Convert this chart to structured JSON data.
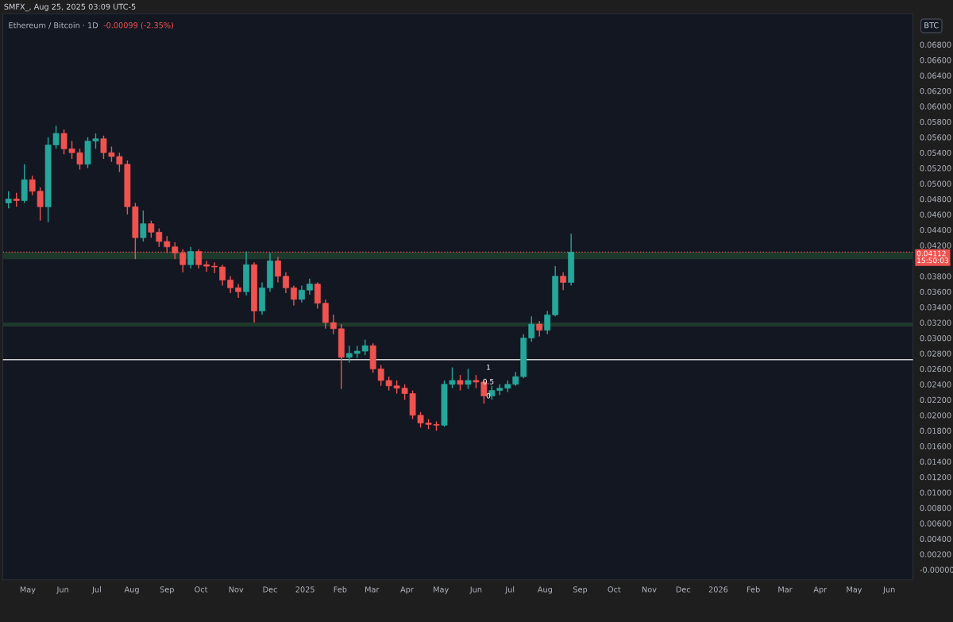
{
  "chart_data": {
    "type": "candlestick",
    "title": "Ethereum / Bitcoin · 1D",
    "subtitle": "-0.00099 (-2.35%)",
    "annotations": [
      "SMFX_, Aug 25, 2025 03:09 UTC-5",
      "BTC",
      "1",
      "0.5",
      "0"
    ],
    "x": [
      "2024-04-14",
      "2024-04-21",
      "2024-04-28",
      "2024-05-05",
      "2024-05-12",
      "2024-05-19",
      "2024-05-26",
      "2024-06-02",
      "2024-06-09",
      "2024-06-16",
      "2024-06-23",
      "2024-06-30",
      "2024-07-07",
      "2024-07-14",
      "2024-07-21",
      "2024-07-28",
      "2024-08-04",
      "2024-08-11",
      "2024-08-18",
      "2024-08-25",
      "2024-09-01",
      "2024-09-08",
      "2024-09-15",
      "2024-09-22",
      "2024-09-29",
      "2024-10-06",
      "2024-10-13",
      "2024-10-20",
      "2024-10-27",
      "2024-11-03",
      "2024-11-10",
      "2024-11-17",
      "2024-11-24",
      "2024-12-01",
      "2024-12-08",
      "2024-12-15",
      "2024-12-22",
      "2024-12-29",
      "2025-01-05",
      "2025-01-12",
      "2025-01-19",
      "2025-01-26",
      "2025-02-02",
      "2025-02-09",
      "2025-02-16",
      "2025-02-23",
      "2025-03-02",
      "2025-03-09",
      "2025-03-16",
      "2025-03-23",
      "2025-03-30",
      "2025-04-06",
      "2025-04-13",
      "2025-04-20",
      "2025-04-27",
      "2025-05-04",
      "2025-05-11",
      "2025-05-18",
      "2025-05-25",
      "2025-06-01",
      "2025-06-08",
      "2025-06-15",
      "2025-06-22",
      "2025-06-29",
      "2025-07-06",
      "2025-07-13",
      "2025-07-20",
      "2025-07-27",
      "2025-08-03",
      "2025-08-10",
      "2025-08-17",
      "2025-08-24"
    ],
    "ohlc": [
      [
        0.0475,
        0.049,
        0.0468,
        0.048
      ],
      [
        0.048,
        0.0488,
        0.047,
        0.0478
      ],
      [
        0.0478,
        0.0525,
        0.0475,
        0.0505
      ],
      [
        0.0505,
        0.051,
        0.0485,
        0.049
      ],
      [
        0.049,
        0.0495,
        0.0452,
        0.047
      ],
      [
        0.047,
        0.056,
        0.045,
        0.055
      ],
      [
        0.055,
        0.0575,
        0.0545,
        0.0565
      ],
      [
        0.0565,
        0.057,
        0.0538,
        0.0545
      ],
      [
        0.0545,
        0.0555,
        0.0532,
        0.054
      ],
      [
        0.054,
        0.0545,
        0.0518,
        0.0525
      ],
      [
        0.0525,
        0.056,
        0.052,
        0.0555
      ],
      [
        0.0555,
        0.0565,
        0.0545,
        0.0558
      ],
      [
        0.0558,
        0.0562,
        0.0532,
        0.054
      ],
      [
        0.054,
        0.0548,
        0.0528,
        0.0535
      ],
      [
        0.0535,
        0.054,
        0.0515,
        0.0525
      ],
      [
        0.0525,
        0.053,
        0.046,
        0.047
      ],
      [
        0.047,
        0.0475,
        0.0402,
        0.043
      ],
      [
        0.043,
        0.0465,
        0.0425,
        0.0448
      ],
      [
        0.0448,
        0.0452,
        0.043,
        0.0437
      ],
      [
        0.0437,
        0.0442,
        0.0418,
        0.0425
      ],
      [
        0.0425,
        0.0432,
        0.041,
        0.0418
      ],
      [
        0.0418,
        0.0424,
        0.0402,
        0.041
      ],
      [
        0.041,
        0.0415,
        0.0385,
        0.0395
      ],
      [
        0.0395,
        0.0418,
        0.039,
        0.0412
      ],
      [
        0.0412,
        0.0415,
        0.039,
        0.0395
      ],
      [
        0.0395,
        0.04,
        0.0386,
        0.0393
      ],
      [
        0.0393,
        0.0398,
        0.0384,
        0.0392
      ],
      [
        0.0392,
        0.0395,
        0.0368,
        0.0375
      ],
      [
        0.0375,
        0.038,
        0.0358,
        0.0365
      ],
      [
        0.0365,
        0.037,
        0.0352,
        0.036
      ],
      [
        0.036,
        0.0412,
        0.0355,
        0.0395
      ],
      [
        0.0395,
        0.0398,
        0.032,
        0.0335
      ],
      [
        0.0335,
        0.0372,
        0.033,
        0.0365
      ],
      [
        0.0365,
        0.041,
        0.036,
        0.04
      ],
      [
        0.04,
        0.0405,
        0.0372,
        0.038
      ],
      [
        0.038,
        0.0385,
        0.0358,
        0.0365
      ],
      [
        0.0365,
        0.0368,
        0.0342,
        0.035
      ],
      [
        0.035,
        0.0368,
        0.0346,
        0.0362
      ],
      [
        0.0362,
        0.0377,
        0.0356,
        0.037
      ],
      [
        0.037,
        0.0372,
        0.0338,
        0.0345
      ],
      [
        0.0345,
        0.035,
        0.0312,
        0.032
      ],
      [
        0.032,
        0.033,
        0.0305,
        0.0312
      ],
      [
        0.0312,
        0.0318,
        0.0234,
        0.0275
      ],
      [
        0.0275,
        0.029,
        0.0268,
        0.028
      ],
      [
        0.028,
        0.029,
        0.0274,
        0.0283
      ],
      [
        0.0283,
        0.0298,
        0.0278,
        0.029
      ],
      [
        0.029,
        0.0293,
        0.0255,
        0.026
      ],
      [
        0.026,
        0.0265,
        0.0238,
        0.0245
      ],
      [
        0.0245,
        0.025,
        0.0232,
        0.0238
      ],
      [
        0.0238,
        0.0245,
        0.0228,
        0.0235
      ],
      [
        0.0235,
        0.024,
        0.022,
        0.0228
      ],
      [
        0.0228,
        0.0232,
        0.0195,
        0.02
      ],
      [
        0.02,
        0.0204,
        0.0184,
        0.019
      ],
      [
        0.019,
        0.0195,
        0.0182,
        0.0188
      ],
      [
        0.0188,
        0.0192,
        0.018,
        0.0187
      ],
      [
        0.0187,
        0.0245,
        0.0185,
        0.024
      ],
      [
        0.024,
        0.0262,
        0.0235,
        0.0245
      ],
      [
        0.0245,
        0.0252,
        0.0232,
        0.024
      ],
      [
        0.024,
        0.026,
        0.0234,
        0.0245
      ],
      [
        0.0245,
        0.0252,
        0.0235,
        0.0243
      ],
      [
        0.0243,
        0.0246,
        0.0215,
        0.0225
      ],
      [
        0.0225,
        0.0238,
        0.022,
        0.0232
      ],
      [
        0.0232,
        0.024,
        0.0226,
        0.0235
      ],
      [
        0.0235,
        0.0245,
        0.023,
        0.024
      ],
      [
        0.024,
        0.0256,
        0.0238,
        0.025
      ],
      [
        0.025,
        0.0305,
        0.0248,
        0.03
      ],
      [
        0.03,
        0.0328,
        0.0295,
        0.0318
      ],
      [
        0.0318,
        0.0322,
        0.0302,
        0.031
      ],
      [
        0.031,
        0.0335,
        0.0305,
        0.033
      ],
      [
        0.033,
        0.0393,
        0.0328,
        0.038
      ],
      [
        0.038,
        0.0385,
        0.0362,
        0.0372
      ],
      [
        0.0372,
        0.0435,
        0.0368,
        0.04112
      ]
    ],
    "colors": [
      "#26a69a",
      "#ef5350",
      "#26a69a",
      "#ef5350",
      "#ef5350",
      "#26a69a",
      "#26a69a",
      "#ef5350",
      "#ef5350",
      "#ef5350",
      "#26a69a",
      "#26a69a",
      "#ef5350",
      "#ef5350",
      "#ef5350",
      "#ef5350",
      "#ef5350",
      "#26a69a",
      "#ef5350",
      "#ef5350",
      "#ef5350",
      "#ef5350",
      "#ef5350",
      "#26a69a",
      "#ef5350",
      "#ef5350",
      "#ef5350",
      "#ef5350",
      "#ef5350",
      "#ef5350",
      "#26a69a",
      "#ef5350",
      "#26a69a",
      "#26a69a",
      "#ef5350",
      "#ef5350",
      "#ef5350",
      "#26a69a",
      "#26a69a",
      "#ef5350",
      "#ef5350",
      "#ef5350",
      "#ef5350",
      "#26a69a",
      "#26a69a",
      "#26a69a",
      "#ef5350",
      "#ef5350",
      "#ef5350",
      "#ef5350",
      "#ef5350",
      "#ef5350",
      "#ef5350",
      "#ef5350",
      "#ef5350",
      "#26a69a",
      "#26a69a",
      "#ef5350",
      "#26a69a",
      "#ef5350",
      "#ef5350",
      "#26a69a",
      "#26a69a",
      "#26a69a",
      "#26a69a",
      "#26a69a",
      "#26a69a",
      "#ef5350",
      "#26a69a",
      "#26a69a",
      "#ef5350",
      "#26a69a"
    ],
    "xlim": [
      "2024-04-09",
      "2026-06-22"
    ],
    "xticks": [
      {
        "value": "2024-05-01",
        "label": "May"
      },
      {
        "value": "2024-06-01",
        "label": "Jun"
      },
      {
        "value": "2024-07-01",
        "label": "Jul"
      },
      {
        "value": "2024-08-01",
        "label": "Aug"
      },
      {
        "value": "2024-09-01",
        "label": "Sep"
      },
      {
        "value": "2024-10-01",
        "label": "Oct"
      },
      {
        "value": "2024-11-01",
        "label": "Nov"
      },
      {
        "value": "2024-12-01",
        "label": "Dec"
      },
      {
        "value": "2025-01-01",
        "label": "2025"
      },
      {
        "value": "2025-02-01",
        "label": "Feb"
      },
      {
        "value": "2025-03-01",
        "label": "Mar"
      },
      {
        "value": "2025-04-01",
        "label": "Apr"
      },
      {
        "value": "2025-05-01",
        "label": "May"
      },
      {
        "value": "2025-06-01",
        "label": "Jun"
      },
      {
        "value": "2025-07-01",
        "label": "Jul"
      },
      {
        "value": "2025-08-01",
        "label": "Aug"
      },
      {
        "value": "2025-09-01",
        "label": "Sep"
      },
      {
        "value": "2025-10-01",
        "label": "Oct"
      },
      {
        "value": "2025-11-01",
        "label": "Nov"
      },
      {
        "value": "2025-12-01",
        "label": "Dec"
      },
      {
        "value": "2026-01-01",
        "label": "2026"
      },
      {
        "value": "2026-02-01",
        "label": "Feb"
      },
      {
        "value": "2026-03-01",
        "label": "Mar"
      },
      {
        "value": "2026-04-01",
        "label": "Apr"
      },
      {
        "value": "2026-05-01",
        "label": "May"
      },
      {
        "value": "2026-06-01",
        "label": "Jun"
      }
    ],
    "ylim": [
      -0.0013,
      0.072
    ],
    "yticks": [
      {
        "value": 0,
        "label": "-0.00000"
      },
      {
        "value": 0.002,
        "label": "0.00200"
      },
      {
        "value": 0.004,
        "label": "0.00400"
      },
      {
        "value": 0.006,
        "label": "0.00600"
      },
      {
        "value": 0.008,
        "label": "0.00800"
      },
      {
        "value": 0.01,
        "label": "0.01000"
      },
      {
        "value": 0.012,
        "label": "0.01200"
      },
      {
        "value": 0.014,
        "label": "0.01400"
      },
      {
        "value": 0.016,
        "label": "0.01600"
      },
      {
        "value": 0.018,
        "label": "0.01800"
      },
      {
        "value": 0.02,
        "label": "0.02000"
      },
      {
        "value": 0.022,
        "label": "0.02200"
      },
      {
        "value": 0.024,
        "label": "0.02400"
      },
      {
        "value": 0.026,
        "label": "0.02600"
      },
      {
        "value": 0.028,
        "label": "0.02800"
      },
      {
        "value": 0.03,
        "label": "0.03000"
      },
      {
        "value": 0.032,
        "label": "0.03200"
      },
      {
        "value": 0.034,
        "label": "0.03400"
      },
      {
        "value": 0.036,
        "label": "0.03600"
      },
      {
        "value": 0.038,
        "label": "0.03800"
      },
      {
        "value": 0.042,
        "label": "0.04200"
      },
      {
        "value": 0.044,
        "label": "0.04400"
      },
      {
        "value": 0.046,
        "label": "0.04600"
      },
      {
        "value": 0.048,
        "label": "0.04800"
      },
      {
        "value": 0.05,
        "label": "0.05000"
      },
      {
        "value": 0.052,
        "label": "0.05200"
      },
      {
        "value": 0.054,
        "label": "0.05400"
      },
      {
        "value": 0.056,
        "label": "0.05600"
      },
      {
        "value": 0.058,
        "label": "0.05800"
      },
      {
        "value": 0.06,
        "label": "0.06000"
      },
      {
        "value": 0.062,
        "label": "0.06200"
      },
      {
        "value": 0.064,
        "label": "0.06400"
      },
      {
        "value": 0.066,
        "label": "0.06600"
      },
      {
        "value": 0.068,
        "label": "0.06800"
      }
    ],
    "bands": [
      {
        "axis": "y",
        "from": 0.0402,
        "to": 0.0411,
        "color": "#1f3d2c"
      },
      {
        "axis": "y",
        "from": 0.0315,
        "to": 0.032,
        "color": "#1f3d2c"
      }
    ],
    "ref_lines": [
      {
        "axis": "y",
        "value": 0.0272,
        "color": "#d0d0d0",
        "line_style": "solid"
      },
      {
        "axis": "y",
        "value": 0.04112,
        "label": "0.04112\n15:50:03",
        "color": "#ef5350",
        "line_style": "dotted"
      }
    ]
  }
}
